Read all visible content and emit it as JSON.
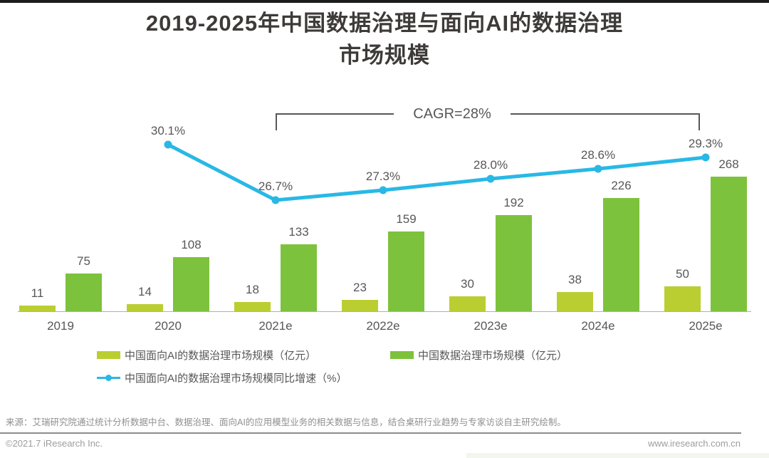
{
  "page": {
    "title_line1": "2019-2025年中国数据治理与面向AI的数据治理",
    "title_line2": "市场规模",
    "cagr_label": "CAGR=28%",
    "source": "来源：艾瑞研究院通过统计分析数据中台、数据治理、面向AI的应用模型业务的相关数据与信息，结合桌研行业趋势与专家访谈自主研究绘制。",
    "footer_left": "©2021.7 iResearch Inc.",
    "footer_right": "www.iresearch.com.cn"
  },
  "colors": {
    "light_green": "#bace31",
    "green": "#7dc23c",
    "cyan": "#29b8e6",
    "label_gray": "#595757",
    "title_gray": "#3e3a39"
  },
  "legend": [
    {
      "label": "中国面向AI的数据治理市场规模（亿元）",
      "type": "bar",
      "color": "#bace31"
    },
    {
      "label": "中国数据治理市场规模（亿元）",
      "type": "bar",
      "color": "#7dc23c"
    },
    {
      "label": "中国面向AI的数据治理市场规模同比增速（%）",
      "type": "line",
      "color": "#29b8e6"
    }
  ],
  "chart_data": {
    "type": "bar",
    "title": "2019-2025年中国数据治理与面向AI的数据治理市场规模",
    "annotation": "CAGR=28%",
    "categories": [
      "2019",
      "2020",
      "2021e",
      "2022e",
      "2023e",
      "2024e",
      "2025e"
    ],
    "series": [
      {
        "name": "中国面向AI的数据治理市场规模（亿元）",
        "type": "bar",
        "color": "#bace31",
        "values": [
          11,
          14,
          18,
          23,
          30,
          38,
          50
        ]
      },
      {
        "name": "中国数据治理市场规模（亿元）",
        "type": "bar",
        "color": "#7dc23c",
        "values": [
          75,
          108,
          133,
          159,
          192,
          226,
          268
        ]
      },
      {
        "name": "中国面向AI的数据治理市场规模同比增速（%）",
        "type": "line",
        "color": "#29b8e6",
        "values": [
          null,
          30.1,
          26.7,
          27.3,
          28.0,
          28.6,
          29.3
        ]
      }
    ],
    "xlabel": "",
    "ylabel": "",
    "grid": false,
    "legend_position": "bottom"
  }
}
